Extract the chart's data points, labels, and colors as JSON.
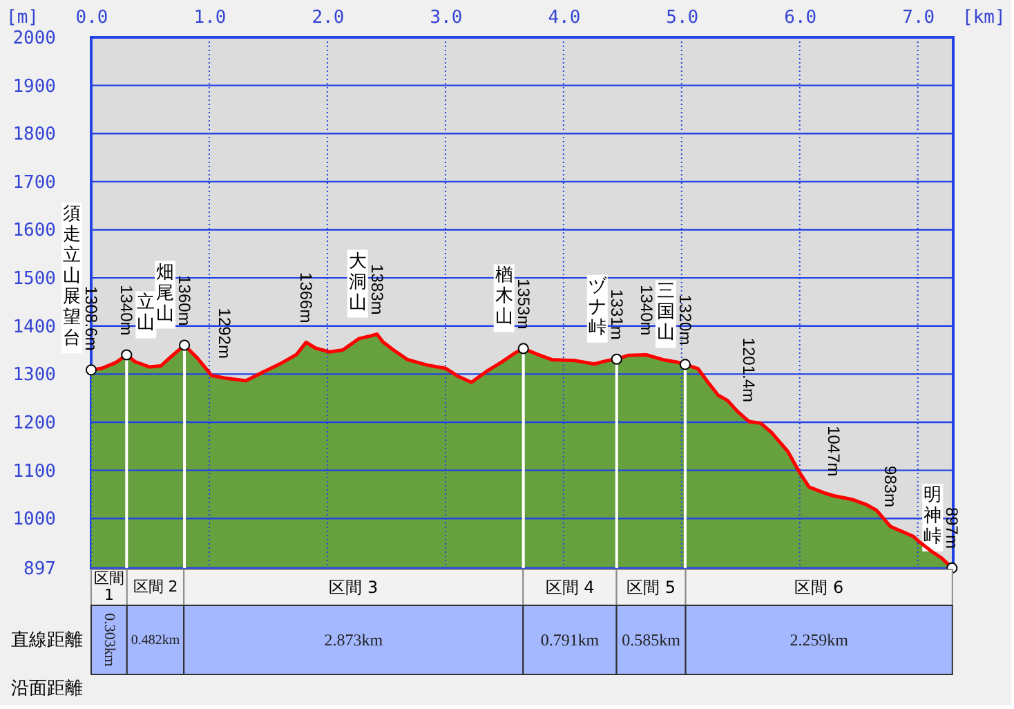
{
  "chart_data": [
    {
      "type": "area",
      "xlabel": "[km]",
      "ylabel": "[m]",
      "x": [
        0,
        0.09,
        0.21,
        0.3,
        0.37,
        0.49,
        0.59,
        0.68,
        0.79,
        0.9,
        1.02,
        1.13,
        1.31,
        1.47,
        1.62,
        1.74,
        1.82,
        1.9,
        2.02,
        2.13,
        2.27,
        2.36,
        2.42,
        2.47,
        2.56,
        2.68,
        2.84,
        3.0,
        3.11,
        3.22,
        3.35,
        3.47,
        3.59,
        3.66,
        3.78,
        3.9,
        4.1,
        4.26,
        4.37,
        4.45,
        4.55,
        4.7,
        4.84,
        4.96,
        5.03,
        5.14,
        5.22,
        5.31,
        5.39,
        5.47,
        5.57,
        5.67,
        5.76,
        5.9,
        6.0,
        6.08,
        6.22,
        6.29,
        6.45,
        6.57,
        6.65,
        6.77,
        6.96,
        7.02,
        7.12,
        7.2,
        7.29
      ],
      "series": [
        {
          "type": "line",
          "color": "#ff0000",
          "values": [
            1308.6,
            1312,
            1324,
            1340,
            1326,
            1315,
            1317,
            1337,
            1360,
            1333,
            1297,
            1292,
            1286,
            1306,
            1324,
            1341,
            1366,
            1354,
            1346,
            1350,
            1374,
            1379,
            1383,
            1367,
            1350,
            1330,
            1319,
            1312,
            1295,
            1283,
            1306,
            1324,
            1344,
            1353,
            1341,
            1330,
            1328,
            1321,
            1328,
            1331,
            1339,
            1340,
            1330,
            1325,
            1320,
            1311,
            1284,
            1256,
            1245,
            1223,
            1201.4,
            1198,
            1179,
            1139,
            1095,
            1065,
            1052,
            1047,
            1039,
            1028,
            1017,
            983,
            963,
            950,
            931,
            918,
            897
          ],
          "value_labels": [
            "1308.6m",
            null,
            null,
            "1340m",
            null,
            null,
            null,
            null,
            "1360m",
            null,
            null,
            "1292m",
            null,
            null,
            null,
            null,
            "1366m",
            null,
            null,
            null,
            null,
            null,
            "1383m",
            null,
            null,
            null,
            null,
            null,
            null,
            null,
            null,
            null,
            null,
            "1353m",
            null,
            null,
            null,
            null,
            null,
            "1331m",
            null,
            "1340m",
            null,
            null,
            "1320m",
            null,
            null,
            null,
            null,
            null,
            "1201.4m",
            null,
            null,
            null,
            null,
            null,
            null,
            "1047m",
            null,
            null,
            null,
            "983m",
            null,
            null,
            null,
            null,
            "897m"
          ]
        },
        {
          "type": "area",
          "color": "#67a03f",
          "values": [
            1308.6,
            1312,
            1324,
            1340,
            1326,
            1315,
            1317,
            1337,
            1360,
            1333,
            1297,
            1292,
            1286,
            1306,
            1324,
            1341,
            1366,
            1354,
            1346,
            1350,
            1374,
            1379,
            1383,
            1367,
            1350,
            1330,
            1319,
            1312,
            1295,
            1283,
            1306,
            1324,
            1344,
            1353,
            1341,
            1330,
            1328,
            1321,
            1328,
            1331,
            1339,
            1340,
            1330,
            1325,
            1320,
            1311,
            1284,
            1256,
            1245,
            1223,
            1201.4,
            1198,
            1179,
            1139,
            1095,
            1065,
            1052,
            1047,
            1039,
            1028,
            1017,
            983,
            963,
            950,
            931,
            918,
            897
          ]
        },
        {
          "type": "lollipop",
          "color": "#ffffff",
          "marker": "circle",
          "x": [
            0.3,
            0.79,
            3.66,
            4.45,
            5.03
          ],
          "values": [
            1340,
            1360,
            1353,
            1331,
            1320
          ]
        },
        {
          "type": "scatter",
          "color": "#ffffff",
          "marker": "circle",
          "x": [
            0,
            7.29
          ],
          "values": [
            1308.6,
            897
          ]
        }
      ],
      "annotations": [
        {
          "text": "須走立山展望台",
          "x": 0,
          "y": 1308.6
        },
        {
          "text": "立山",
          "x": 0.3,
          "y": 1340
        },
        {
          "text": "畑尾山",
          "x": 0.79,
          "y": 1360
        },
        {
          "text": "大洞山",
          "x": 2.42,
          "y": 1383
        },
        {
          "text": "楢木山",
          "x": 3.66,
          "y": 1353
        },
        {
          "text": "ヅナ峠",
          "x": 4.45,
          "y": 1331
        },
        {
          "text": "三国山",
          "x": 5.03,
          "y": 1320
        },
        {
          "text": "明神峠",
          "x": 7.29,
          "y": 897
        }
      ],
      "xlim": [
        0,
        7.3
      ],
      "xticks": [
        {
          "value": 0,
          "label": "0.0"
        },
        {
          "value": 1,
          "label": "1.0"
        },
        {
          "value": 2,
          "label": "2.0"
        },
        {
          "value": 3,
          "label": "3.0"
        },
        {
          "value": 4,
          "label": "4.0"
        },
        {
          "value": 5,
          "label": "5.0"
        },
        {
          "value": 6,
          "label": "6.0"
        },
        {
          "value": 7,
          "label": "7.0"
        }
      ],
      "ylim": [
        897,
        2000
      ],
      "yticks": [
        897,
        1000,
        1100,
        1200,
        1300,
        1400,
        1500,
        1600,
        1700,
        1800,
        1900,
        2000
      ],
      "grid": true
    },
    {
      "type": "other",
      "categories": [
        "区間 1",
        "区間 2",
        "区間 3",
        "区間 4",
        "区間 5",
        "区間 6"
      ],
      "values": [
        0.303,
        0.482,
        2.873,
        0.791,
        0.585,
        2.259
      ],
      "value_labels": [
        "0.303km",
        "0.482km",
        "2.873km",
        "0.791km",
        "0.585km",
        "2.259km"
      ],
      "ylabel": "直線距離",
      "color": "#a4b8ff",
      "annotations": [
        "沿面距離"
      ]
    }
  ]
}
